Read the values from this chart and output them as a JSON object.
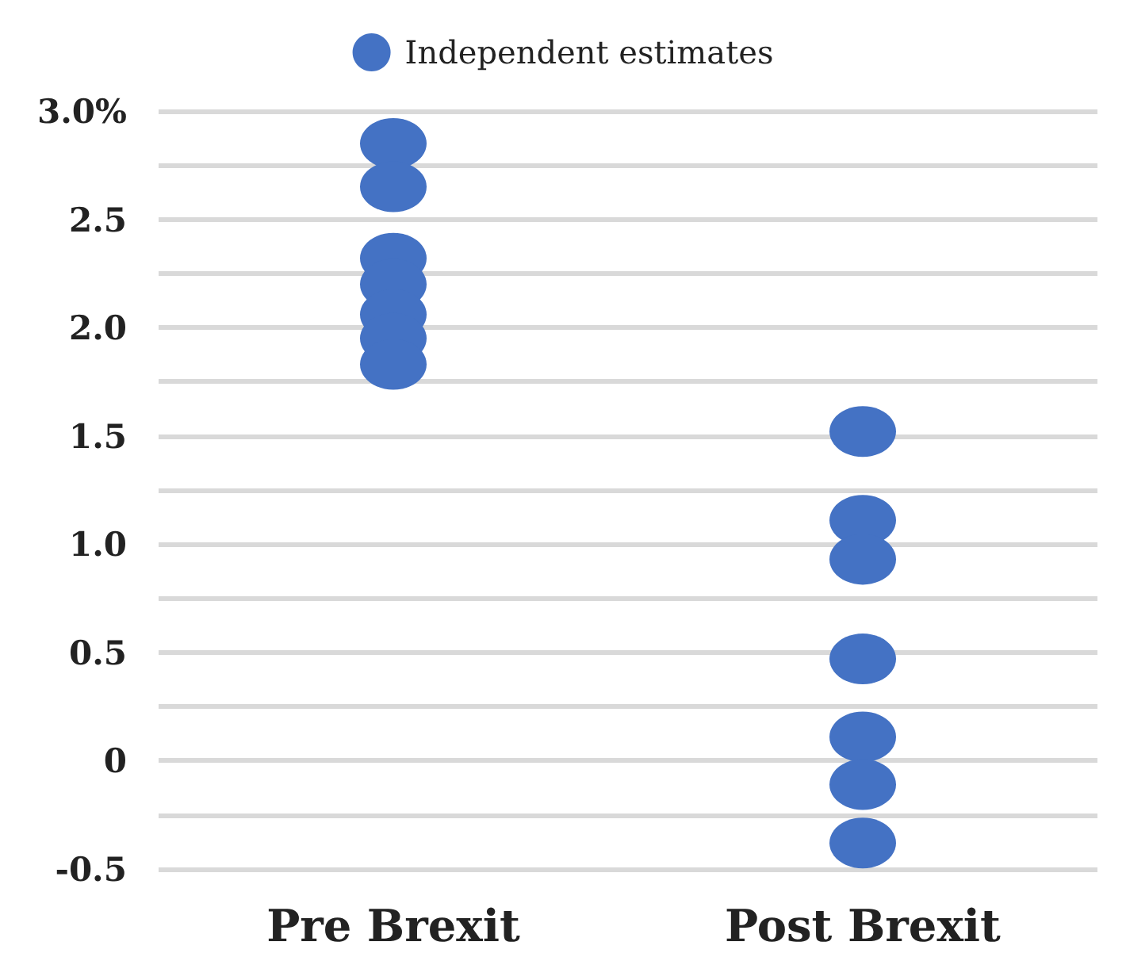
{
  "chart_data": {
    "type": "scatter",
    "categories": [
      "Pre Brexit",
      "Post Brexit"
    ],
    "series": [
      {
        "name": "Independent estimates",
        "color": "#4472c4",
        "x": [
          "Pre Brexit",
          "Pre Brexit",
          "Pre Brexit",
          "Pre Brexit",
          "Pre Brexit",
          "Pre Brexit",
          "Pre Brexit",
          "Post Brexit",
          "Post Brexit",
          "Post Brexit",
          "Post Brexit",
          "Post Brexit",
          "Post Brexit",
          "Post Brexit"
        ],
        "values": [
          2.85,
          2.65,
          2.32,
          2.2,
          2.06,
          1.95,
          1.83,
          1.52,
          1.11,
          0.93,
          0.47,
          0.11,
          -0.11,
          -0.38
        ]
      }
    ],
    "ylim": [
      -0.5,
      3.0
    ],
    "yticks": [
      -0.5,
      {
        "value": -0.25,
        "label": null
      },
      0,
      {
        "value": 0.25,
        "label": null
      },
      0.5,
      {
        "value": 0.75,
        "label": null
      },
      {
        "value": 1.0,
        "label": "1.0"
      },
      {
        "value": 1.25,
        "label": null
      },
      1.5,
      {
        "value": 1.75,
        "label": null
      },
      {
        "value": 2.0,
        "label": "2.0"
      },
      {
        "value": 2.25,
        "label": null
      },
      2.5,
      {
        "value": 2.75,
        "label": null
      },
      {
        "value": 3.0,
        "label": "3.0%"
      }
    ],
    "grid": "y",
    "legend": "top",
    "marker": "circle"
  }
}
